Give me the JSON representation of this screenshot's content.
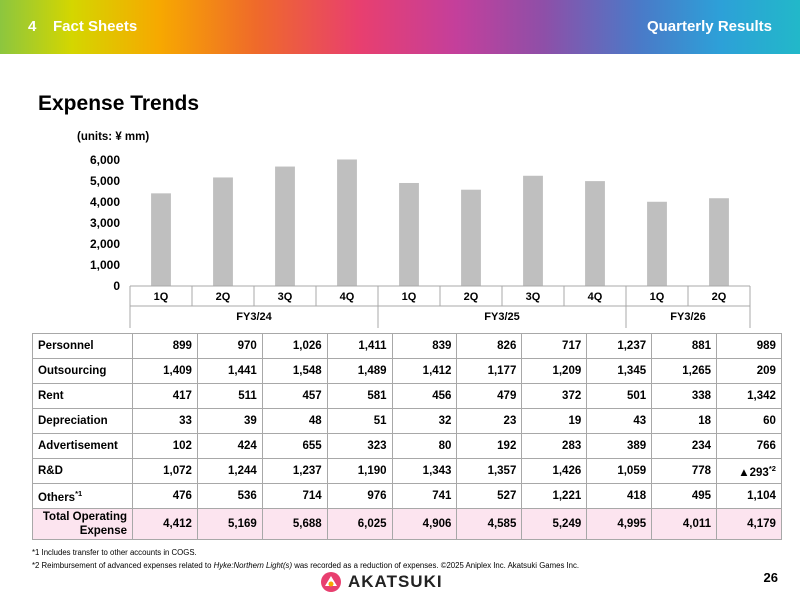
{
  "header": {
    "section_number": "4",
    "section_title": "Fact Sheets",
    "right_title": "Quarterly Results"
  },
  "page_title": "Expense Trends",
  "units_label": "(units: ¥ mm)",
  "chart_data": {
    "type": "bar",
    "title": "Expense Trends",
    "categories": [
      "1Q",
      "2Q",
      "3Q",
      "4Q",
      "1Q",
      "2Q",
      "3Q",
      "4Q",
      "1Q",
      "2Q"
    ],
    "groups": [
      {
        "label": "FY3/24",
        "count": 4
      },
      {
        "label": "FY3/25",
        "count": 4
      },
      {
        "label": "FY3/26",
        "count": 2
      }
    ],
    "series": [
      {
        "name": "Total Operating Expense",
        "values": [
          4412,
          5169,
          5688,
          6025,
          4906,
          4585,
          5249,
          4995,
          4011,
          4179
        ]
      }
    ],
    "yticks": [
      "0",
      "1,000",
      "2,000",
      "3,000",
      "4,000",
      "5,000",
      "6,000"
    ],
    "ylim": [
      0,
      6000
    ],
    "bar_color": "#bfbfbf",
    "grid": false,
    "xlabel": "",
    "ylabel": ""
  },
  "table": {
    "rows": [
      {
        "label": "Personnel",
        "values": [
          "899",
          "970",
          "1,026",
          "1,411",
          "839",
          "826",
          "717",
          "1,237",
          "881",
          "989"
        ]
      },
      {
        "label": "Outsourcing",
        "values": [
          "1,409",
          "1,441",
          "1,548",
          "1,489",
          "1,412",
          "1,177",
          "1,209",
          "1,345",
          "1,265",
          "209"
        ]
      },
      {
        "label": "Rent",
        "values": [
          "417",
          "511",
          "457",
          "581",
          "456",
          "479",
          "372",
          "501",
          "338",
          "1,342"
        ]
      },
      {
        "label": "Depreciation",
        "values": [
          "33",
          "39",
          "48",
          "51",
          "32",
          "23",
          "19",
          "43",
          "18",
          "60"
        ]
      },
      {
        "label": "Advertisement",
        "values": [
          "102",
          "424",
          "655",
          "323",
          "80",
          "192",
          "283",
          "389",
          "234",
          "766"
        ]
      },
      {
        "label": "R&D",
        "values": [
          "1,072",
          "1,244",
          "1,237",
          "1,190",
          "1,343",
          "1,357",
          "1,426",
          "1,059",
          "778",
          "▲293"
        ]
      },
      {
        "label": "Others",
        "values": [
          "476",
          "536",
          "714",
          "976",
          "741",
          "527",
          "1,221",
          "418",
          "495",
          "1,104"
        ]
      }
    ],
    "others_sup": "*1",
    "rd_last_sup": "*2",
    "total": {
      "label_line1": "Total Operating",
      "label_line2": "Expense",
      "values": [
        "4,412",
        "5,169",
        "5,688",
        "6,025",
        "4,906",
        "4,585",
        "5,249",
        "4,995",
        "4,011",
        "4,179"
      ]
    }
  },
  "footnotes": {
    "note1": "*1 Includes transfer to other accounts in COGS.",
    "note2_pre": "*2 Reimbursement of advanced expenses related to ",
    "note2_italic": "Hyke:Northern Light(s)",
    "note2_post": " was recorded as a reduction of expenses. ©2025 Aniplex Inc. Akatsuki Games Inc."
  },
  "logo_text": "AKATSUKI",
  "page_number": "26"
}
